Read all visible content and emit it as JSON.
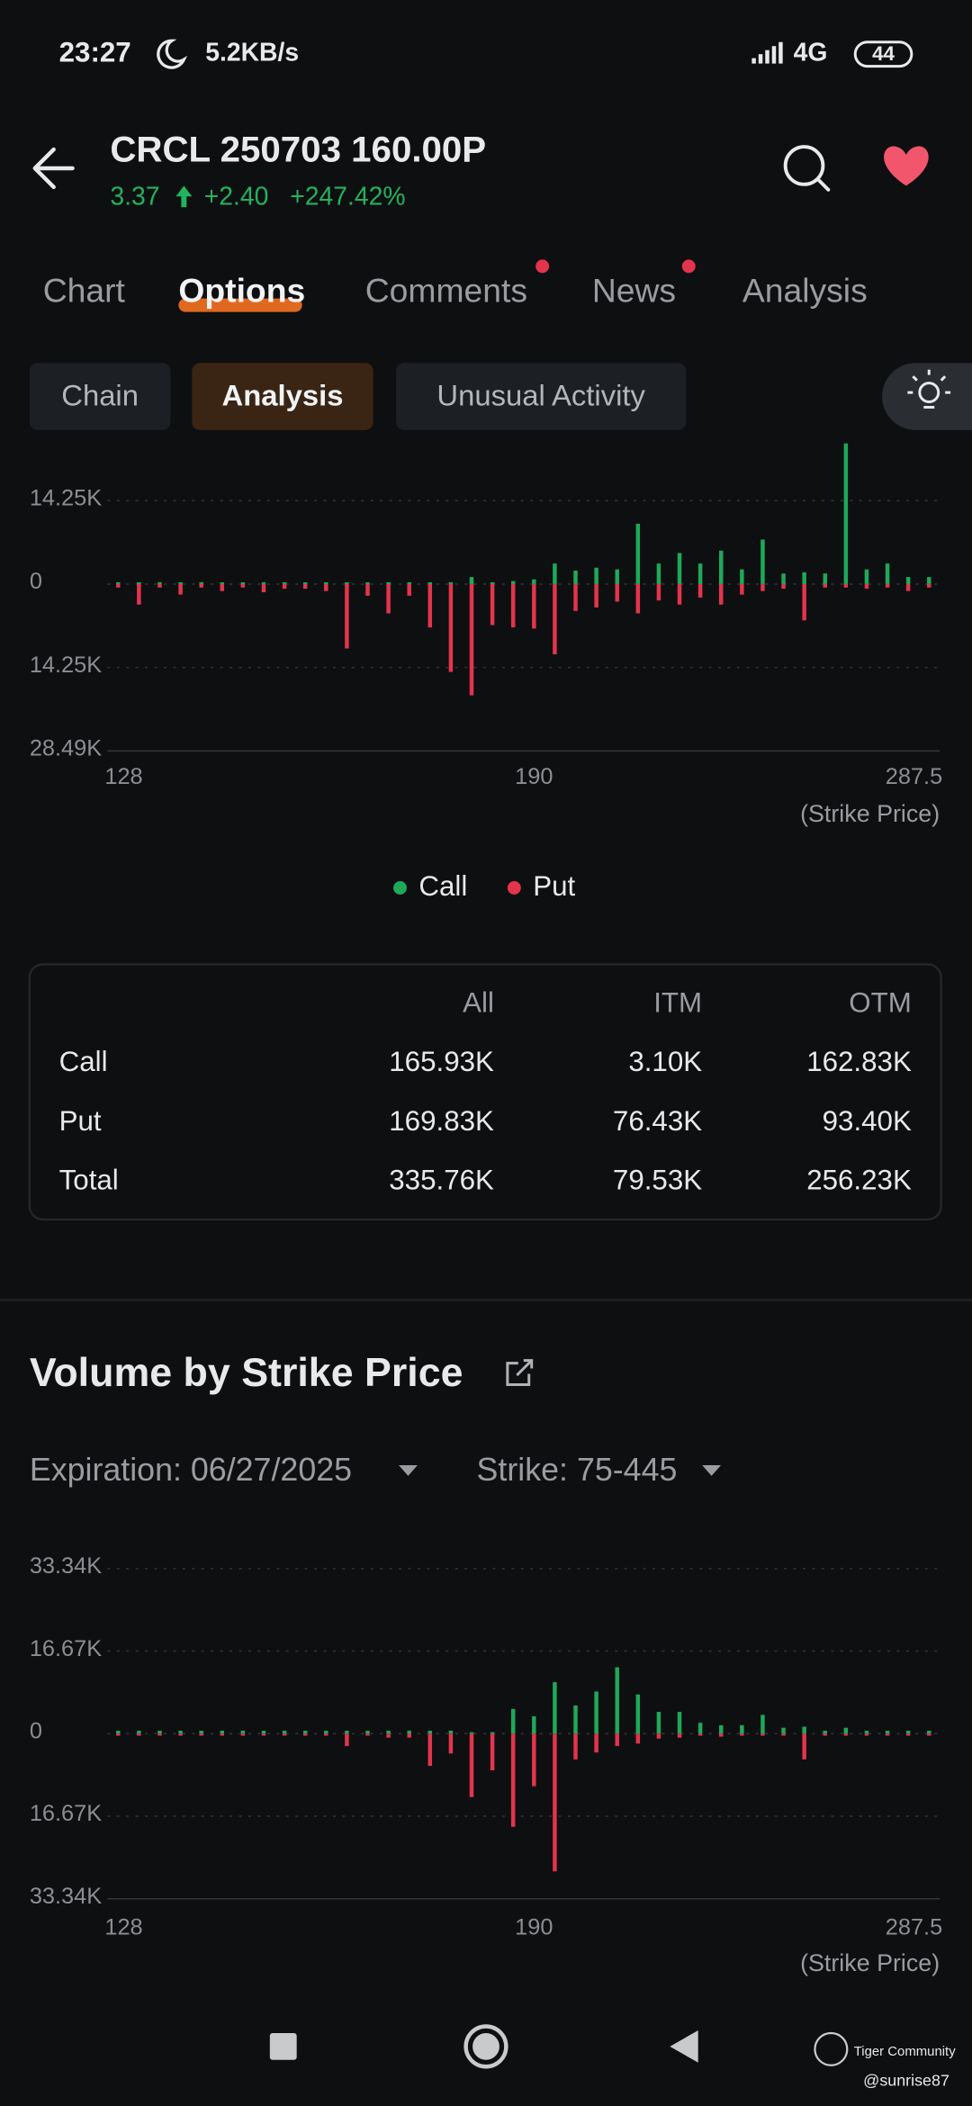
{
  "status_bar": {
    "time": "23:27",
    "speed": "5.2KB/s",
    "network": "4G",
    "battery": "44"
  },
  "header": {
    "title": "CRCL 250703 160.00P",
    "price": "3.37",
    "change": "+2.40",
    "change_pct": "+247.42%"
  },
  "tabs": [
    "Chart",
    "Options",
    "Comments",
    "News",
    "Analysis"
  ],
  "subtabs": [
    "Chain",
    "Analysis",
    "Unusual Activity"
  ],
  "chart_data": [
    {
      "type": "bar",
      "categories": [
        "128",
        null,
        null,
        null,
        null,
        null,
        null,
        null,
        null,
        null,
        null,
        null,
        null,
        null,
        null,
        null,
        null,
        null,
        null,
        null,
        "190",
        null,
        null,
        null,
        null,
        null,
        null,
        null,
        null,
        null,
        null,
        null,
        null,
        null,
        null,
        null,
        null,
        null,
        null,
        "287.5"
      ],
      "series": [
        {
          "name": "Call",
          "color": "#1fa85a",
          "values": [
            300,
            300,
            300,
            300,
            300,
            300,
            300,
            300,
            300,
            300,
            300,
            300,
            300,
            300,
            300,
            300,
            300,
            1200,
            300,
            500,
            800,
            3500,
            2300,
            2800,
            2500,
            10300,
            3500,
            5300,
            3500,
            5700,
            2500,
            7600,
            1800,
            2000,
            1800,
            24000,
            2500,
            3500,
            1200,
            1200
          ]
        },
        {
          "name": "Put",
          "color": "#e3344e",
          "values": [
            -600,
            -3500,
            -600,
            -1800,
            -600,
            -1200,
            -600,
            -1400,
            -800,
            -800,
            -1200,
            -11000,
            -2000,
            -5000,
            -2000,
            -7400,
            -15000,
            -19000,
            -7000,
            -7400,
            -7600,
            -12000,
            -4600,
            -4000,
            -3000,
            -5000,
            -2800,
            -3500,
            -2300,
            -3500,
            -1800,
            -1200,
            -800,
            -6200,
            -600,
            -600,
            -800,
            -600,
            -1200,
            -600
          ]
        }
      ],
      "ylim": [
        -28490,
        24000
      ],
      "yticks": [
        {
          "value": 14250,
          "label": "14.25K"
        },
        0,
        {
          "value": -14250,
          "label": "14.25K"
        },
        {
          "value": -28490,
          "label": "28.49K"
        }
      ],
      "grid": true,
      "xlabel": "(Strike Price)",
      "legend": "bottom"
    },
    {
      "type": "bar",
      "title": "Volume by Strike Price",
      "categories": [
        "128",
        null,
        null,
        null,
        null,
        null,
        null,
        null,
        null,
        null,
        null,
        null,
        null,
        null,
        null,
        null,
        null,
        null,
        null,
        null,
        "190",
        null,
        null,
        null,
        null,
        null,
        null,
        null,
        null,
        null,
        null,
        null,
        null,
        null,
        null,
        null,
        null,
        null,
        null,
        "287.5"
      ],
      "series": [
        {
          "color": "#1fa85a",
          "values": [
            600,
            600,
            600,
            600,
            600,
            600,
            600,
            600,
            600,
            600,
            600,
            600,
            600,
            600,
            600,
            600,
            600,
            300,
            300,
            5000,
            3500,
            10400,
            5700,
            8500,
            13400,
            7900,
            4400,
            4400,
            2200,
            1700,
            1700,
            3800,
            1200,
            1400,
            600,
            1200,
            600,
            600,
            600,
            600
          ]
        },
        {
          "color": "#e3344e",
          "values": [
            -400,
            -400,
            -400,
            -400,
            -400,
            -400,
            -400,
            -400,
            -400,
            -400,
            -400,
            -2500,
            -400,
            -800,
            -800,
            -6500,
            -4000,
            -12800,
            -7400,
            -18800,
            -10600,
            -27800,
            -5200,
            -3800,
            -2500,
            -2000,
            -1000,
            -800,
            -400,
            -600,
            -400,
            -400,
            -400,
            -5200,
            -400,
            -400,
            -400,
            -400,
            -400,
            -400
          ]
        }
      ],
      "ylim": [
        -33340,
        33340
      ],
      "yticks": [
        {
          "value": 33340,
          "label": "33.34K"
        },
        {
          "value": 16670,
          "label": "16.67K"
        },
        0,
        {
          "value": -16670,
          "label": "16.67K"
        },
        {
          "value": -33340,
          "label": "33.34K"
        }
      ],
      "grid": true,
      "xlabel": "(Strike Price)"
    }
  ],
  "table": {
    "header": [
      "All",
      "ITM",
      "OTM"
    ],
    "rows": [
      [
        "Call",
        "165.93K",
        "3.10K",
        "162.83K"
      ],
      [
        "Put",
        "169.83K",
        "76.43K",
        "93.40K"
      ],
      [
        "Total",
        "335.76K",
        "79.53K",
        "256.23K"
      ]
    ]
  },
  "filters": {
    "expiration": "Expiration: 06/27/2025",
    "strike": "Strike: 75-445"
  },
  "footer": {
    "watermark": "Tiger Community",
    "user": "@sunrise87"
  }
}
